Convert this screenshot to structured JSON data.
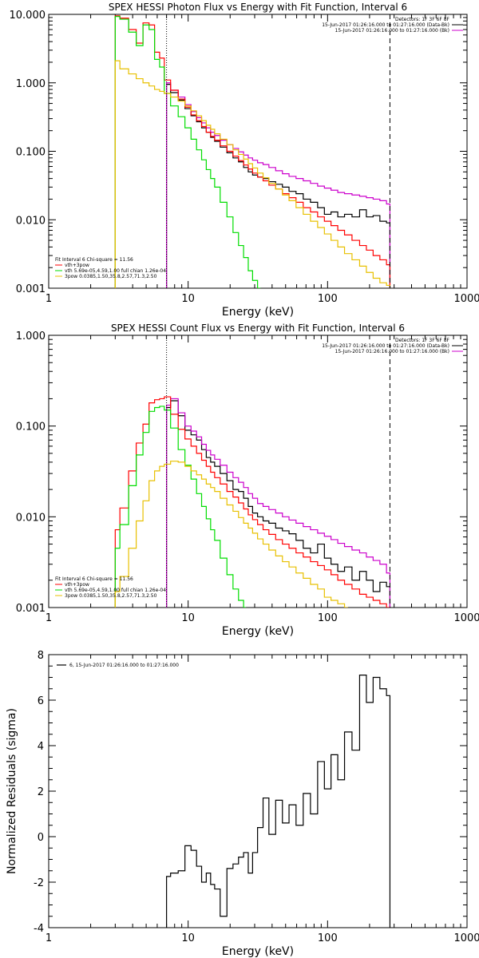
{
  "chart_data": [
    {
      "type": "line",
      "title": "SPEX HESSI Photon Flux vs Energy with Fit Function, Interval 6",
      "xlabel": "Energy (keV)",
      "ylabel": "",
      "xscale": "log",
      "yscale": "log",
      "xlim": [
        1,
        1000
      ],
      "ylim": [
        0.001,
        10
      ],
      "x_ticks": [
        "1",
        "10",
        "100",
        "1000"
      ],
      "y_ticks": [
        "0.001",
        "0.010",
        "0.100",
        "1.000",
        "10.000"
      ],
      "vlines": [
        {
          "x": 7,
          "style": "dotted",
          "color": "#000000"
        },
        {
          "x": 280,
          "style": "dashed",
          "color": "#000000"
        }
      ],
      "info_lines": [
        "Detectors: 1F 3F 6F 8F",
        "15-Jun-2017 01:26:16.000 to 01:27:16.000 (Data-Bk)",
        "15-Jun-2017 01:26:16.000 to 01:27:16.000 (Bk)"
      ],
      "info_colors": [
        "",
        "#000000",
        "#cc00cc"
      ],
      "fit_lines": [
        "Fit Interval 6   Chi-square = 11.56",
        "vth+3pow",
        "vth 5.69e-05,4.59,1.00  full chian 1.26e-04",
        "3pow 0.0385,1.50,35.8,2.57,71.3,2.50"
      ],
      "fit_colors": [
        "",
        "#ff0000",
        "#00dd00",
        "#e8c000"
      ],
      "series": [
        {
          "name": "",
          "color": "#000000",
          "x": [
            7,
            8,
            9,
            10,
            11,
            12,
            13,
            14,
            15,
            16,
            18,
            20,
            22,
            24,
            26,
            28,
            30,
            33,
            36,
            40,
            45,
            50,
            56,
            63,
            71,
            80,
            90,
            100,
            112,
            125,
            140,
            160,
            180,
            200,
            225,
            250,
            280
          ],
          "y": [
            0.95,
            0.72,
            0.56,
            0.42,
            0.33,
            0.27,
            0.22,
            0.19,
            0.16,
            0.14,
            0.115,
            0.095,
            0.08,
            0.07,
            0.058,
            0.05,
            0.045,
            0.042,
            0.04,
            0.036,
            0.033,
            0.03,
            0.026,
            0.024,
            0.02,
            0.018,
            0.015,
            0.012,
            0.013,
            0.011,
            0.012,
            0.011,
            0.014,
            0.011,
            0.0115,
            0.0095,
            0.009
          ]
        },
        {
          "name": "",
          "color": "#cc00cc",
          "x": [
            7,
            8,
            9,
            10,
            11,
            12,
            13,
            14,
            15,
            16,
            18,
            20,
            22,
            24,
            26,
            28,
            30,
            33,
            36,
            40,
            45,
            50,
            56,
            63,
            71,
            80,
            90,
            100,
            112,
            125,
            140,
            160,
            180,
            200,
            225,
            250,
            280
          ],
          "y": [
            1.0,
            0.78,
            0.62,
            0.48,
            0.38,
            0.31,
            0.26,
            0.22,
            0.19,
            0.17,
            0.145,
            0.125,
            0.11,
            0.098,
            0.088,
            0.08,
            0.074,
            0.068,
            0.064,
            0.058,
            0.052,
            0.047,
            0.043,
            0.04,
            0.037,
            0.034,
            0.031,
            0.029,
            0.027,
            0.025,
            0.024,
            0.023,
            0.022,
            0.021,
            0.02,
            0.019,
            0.017
          ]
        },
        {
          "name": "",
          "color": "#ff0000",
          "x": [
            3,
            3.5,
            4,
            4.5,
            5,
            5.5,
            6,
            6.5,
            7,
            8,
            9,
            10,
            11,
            12,
            13,
            14,
            15,
            16,
            18,
            20,
            22,
            24,
            26,
            28,
            30,
            33,
            36,
            40,
            45,
            50,
            56,
            63,
            71,
            80,
            90,
            100,
            112,
            125,
            140,
            160,
            180,
            200,
            225,
            250,
            280
          ],
          "y": [
            9.5,
            8.8,
            6.0,
            3.8,
            7.5,
            7.0,
            2.8,
            2.3,
            1.1,
            0.78,
            0.58,
            0.44,
            0.34,
            0.28,
            0.23,
            0.19,
            0.165,
            0.145,
            0.12,
            0.1,
            0.085,
            0.073,
            0.063,
            0.055,
            0.048,
            0.042,
            0.037,
            0.032,
            0.028,
            0.024,
            0.021,
            0.018,
            0.015,
            0.013,
            0.011,
            0.0095,
            0.0082,
            0.007,
            0.006,
            0.005,
            0.0042,
            0.0036,
            0.003,
            0.0026,
            0.0022
          ]
        },
        {
          "name": "",
          "color": "#00dd00",
          "x": [
            3,
            3.5,
            4,
            4.5,
            5,
            5.5,
            6,
            6.5,
            7,
            8,
            9,
            10,
            11,
            12,
            13,
            14,
            15,
            16,
            18,
            20,
            22,
            24,
            26,
            28,
            30,
            33
          ],
          "y": [
            9.3,
            8.5,
            5.5,
            3.5,
            7.0,
            6.0,
            2.2,
            1.7,
            0.7,
            0.46,
            0.32,
            0.22,
            0.15,
            0.105,
            0.075,
            0.054,
            0.04,
            0.03,
            0.018,
            0.011,
            0.0065,
            0.0042,
            0.0028,
            0.0018,
            0.0013,
            0.001
          ]
        },
        {
          "name": "",
          "color": "#e8c000",
          "x": [
            3,
            3.5,
            4,
            4.5,
            5,
            5.5,
            6,
            6.5,
            7,
            8,
            9,
            10,
            11,
            12,
            13,
            14,
            15,
            16,
            18,
            20,
            22,
            24,
            26,
            28,
            30,
            33,
            36,
            40,
            45,
            50,
            56,
            63,
            71,
            80,
            90,
            100,
            112,
            125,
            140,
            160,
            180,
            200,
            225,
            250,
            280
          ],
          "y": [
            2.1,
            1.6,
            1.35,
            1.15,
            1.0,
            0.9,
            0.8,
            0.75,
            0.7,
            0.62,
            0.54,
            0.46,
            0.39,
            0.33,
            0.28,
            0.24,
            0.21,
            0.18,
            0.15,
            0.125,
            0.105,
            0.09,
            0.077,
            0.066,
            0.057,
            0.048,
            0.041,
            0.034,
            0.028,
            0.023,
            0.019,
            0.015,
            0.012,
            0.0095,
            0.0077,
            0.0062,
            0.005,
            0.004,
            0.0032,
            0.0026,
            0.0021,
            0.0017,
            0.0014,
            0.0012,
            0.0011
          ]
        }
      ]
    },
    {
      "type": "line",
      "title": "SPEX HESSI Count Flux vs Energy with Fit Function, Interval 6",
      "xlabel": "Energy (keV)",
      "ylabel": "",
      "xscale": "log",
      "yscale": "log",
      "xlim": [
        1,
        1000
      ],
      "ylim": [
        0.001,
        1
      ],
      "x_ticks": [
        "1",
        "10",
        "100",
        "1000"
      ],
      "y_ticks": [
        "0.001",
        "0.010",
        "0.100",
        "1.000"
      ],
      "vlines": [
        {
          "x": 7,
          "style": "dotted",
          "color": "#000000"
        },
        {
          "x": 280,
          "style": "dashed",
          "color": "#000000"
        }
      ],
      "info_lines": [
        "Detectors: 1F 3F 6F 8F",
        "15-Jun-2017 01:26:16.000 to 01:27:16.000 (Data-Bk)",
        "15-Jun-2017 01:26:16.000 to 01:27:16.000 (Bk)"
      ],
      "info_colors": [
        "",
        "#000000",
        "#cc00cc"
      ],
      "fit_lines": [
        "Fit Interval 6   Chi-square = 11.56",
        "vth+3pow",
        "vth 5.69e-05,4.59,1.00  full chian 1.26e-04",
        "3pow 0.0385,1.50,35.8,2.57,71.3,2.50"
      ],
      "fit_colors": [
        "",
        "#ff0000",
        "#00dd00",
        "#e8c000"
      ],
      "series": [
        {
          "name": "",
          "color": "#000000",
          "x": [
            7,
            8,
            9,
            10,
            11,
            12,
            13,
            14,
            15,
            16,
            18,
            20,
            22,
            24,
            26,
            28,
            30,
            33,
            36,
            40,
            45,
            50,
            56,
            63,
            71,
            80,
            90,
            100,
            112,
            125,
            140,
            160,
            180,
            200,
            225,
            250,
            280
          ],
          "y": [
            0.16,
            0.19,
            0.13,
            0.09,
            0.08,
            0.07,
            0.055,
            0.045,
            0.04,
            0.036,
            0.03,
            0.025,
            0.02,
            0.019,
            0.016,
            0.013,
            0.011,
            0.01,
            0.009,
            0.0085,
            0.0075,
            0.007,
            0.0065,
            0.0055,
            0.0045,
            0.004,
            0.005,
            0.0035,
            0.003,
            0.0025,
            0.0028,
            0.002,
            0.0025,
            0.002,
            0.0015,
            0.0019,
            0.0017
          ]
        },
        {
          "name": "",
          "color": "#cc00cc",
          "x": [
            7,
            8,
            9,
            10,
            11,
            12,
            13,
            14,
            15,
            16,
            18,
            20,
            22,
            24,
            26,
            28,
            30,
            33,
            36,
            40,
            45,
            50,
            56,
            63,
            71,
            80,
            90,
            100,
            112,
            125,
            140,
            160,
            180,
            200,
            225,
            250,
            280
          ],
          "y": [
            0.17,
            0.2,
            0.14,
            0.1,
            0.088,
            0.076,
            0.063,
            0.054,
            0.048,
            0.043,
            0.037,
            0.031,
            0.027,
            0.024,
            0.021,
            0.018,
            0.016,
            0.014,
            0.013,
            0.012,
            0.011,
            0.01,
            0.0092,
            0.0085,
            0.0078,
            0.0072,
            0.0066,
            0.0061,
            0.0056,
            0.0051,
            0.0047,
            0.0043,
            0.004,
            0.0036,
            0.0033,
            0.003,
            0.0024
          ]
        },
        {
          "name": "",
          "color": "#ff0000",
          "x": [
            3,
            3.5,
            4,
            4.5,
            5,
            5.5,
            6,
            6.5,
            7,
            8,
            9,
            10,
            11,
            12,
            13,
            14,
            15,
            16,
            18,
            20,
            22,
            24,
            26,
            28,
            30,
            33,
            36,
            40,
            45,
            50,
            56,
            63,
            71,
            80,
            90,
            100,
            112,
            125,
            140,
            160,
            180,
            200,
            225,
            250,
            280
          ],
          "y": [
            0.0072,
            0.0125,
            0.032,
            0.065,
            0.105,
            0.18,
            0.195,
            0.2,
            0.21,
            0.135,
            0.092,
            0.072,
            0.06,
            0.05,
            0.042,
            0.036,
            0.031,
            0.027,
            0.023,
            0.019,
            0.0165,
            0.0142,
            0.0122,
            0.0105,
            0.0093,
            0.0082,
            0.0072,
            0.0064,
            0.0056,
            0.005,
            0.0045,
            0.004,
            0.0036,
            0.0032,
            0.0029,
            0.0026,
            0.0023,
            0.002,
            0.0018,
            0.0016,
            0.0014,
            0.0013,
            0.0012,
            0.0011,
            0.001
          ]
        },
        {
          "name": "",
          "color": "#00dd00",
          "x": [
            3,
            3.5,
            4,
            4.5,
            5,
            5.5,
            6,
            6.5,
            7,
            8,
            9,
            10,
            11,
            12,
            13,
            14,
            15,
            16,
            18,
            20,
            22,
            24,
            26
          ],
          "y": [
            0.0045,
            0.0082,
            0.022,
            0.048,
            0.085,
            0.145,
            0.16,
            0.165,
            0.15,
            0.095,
            0.055,
            0.037,
            0.026,
            0.018,
            0.013,
            0.0095,
            0.0072,
            0.0055,
            0.0035,
            0.0023,
            0.0016,
            0.0012,
            0.001
          ]
        },
        {
          "name": "",
          "color": "#e8c000",
          "x": [
            3,
            3.5,
            4,
            4.5,
            5,
            5.5,
            6,
            6.5,
            7,
            8,
            9,
            10,
            11,
            12,
            13,
            14,
            15,
            16,
            18,
            20,
            22,
            24,
            26,
            28,
            30,
            33,
            36,
            40,
            45,
            50,
            56,
            63,
            71,
            80,
            90,
            100,
            112,
            125,
            140
          ],
          "y": [
            0.0015,
            0.0022,
            0.0045,
            0.009,
            0.015,
            0.025,
            0.032,
            0.036,
            0.038,
            0.041,
            0.04,
            0.036,
            0.032,
            0.029,
            0.026,
            0.023,
            0.021,
            0.019,
            0.016,
            0.0135,
            0.0115,
            0.0098,
            0.0085,
            0.0075,
            0.0066,
            0.0057,
            0.005,
            0.0043,
            0.0037,
            0.0032,
            0.0028,
            0.0024,
            0.0021,
            0.0018,
            0.0016,
            0.0013,
            0.0012,
            0.0011,
            0.001
          ]
        }
      ]
    },
    {
      "type": "line",
      "title": "",
      "xlabel": "Energy (keV)",
      "ylabel": "Normalized Residuals (sigma)",
      "xscale": "log",
      "yscale": "linear",
      "xlim": [
        1,
        1000
      ],
      "ylim": [
        -4,
        8
      ],
      "x_ticks": [
        "1",
        "10",
        "100",
        "1000"
      ],
      "y_ticks": [
        "-4",
        "-2",
        "0",
        "2",
        "4",
        "6",
        "8"
      ],
      "legend": "6, 15-Jun-2017 01:26:16.000 to 01:27:16.000",
      "series": [
        {
          "name": "6, 15-Jun-2017 01:26:16.000 to 01:27:16.000",
          "color": "#000000",
          "x": [
            7,
            8,
            9,
            10,
            11,
            12,
            13,
            14,
            15,
            16,
            18,
            20,
            22,
            24,
            26,
            28,
            30,
            33,
            36,
            40,
            45,
            50,
            56,
            63,
            71,
            80,
            90,
            100,
            112,
            125,
            140,
            160,
            180,
            200,
            225,
            250,
            280
          ],
          "y": [
            -1.75,
            -1.6,
            -1.5,
            -0.4,
            -0.6,
            -1.3,
            -2.0,
            -1.6,
            -2.1,
            -2.3,
            -3.5,
            -1.4,
            -1.2,
            -0.9,
            -0.7,
            -1.6,
            -0.7,
            0.4,
            1.7,
            0.1,
            1.6,
            0.6,
            1.4,
            0.5,
            1.9,
            1.0,
            3.3,
            2.1,
            3.6,
            2.5,
            4.6,
            3.8,
            7.1,
            5.9,
            7.0,
            6.5,
            6.2
          ]
        }
      ]
    }
  ]
}
